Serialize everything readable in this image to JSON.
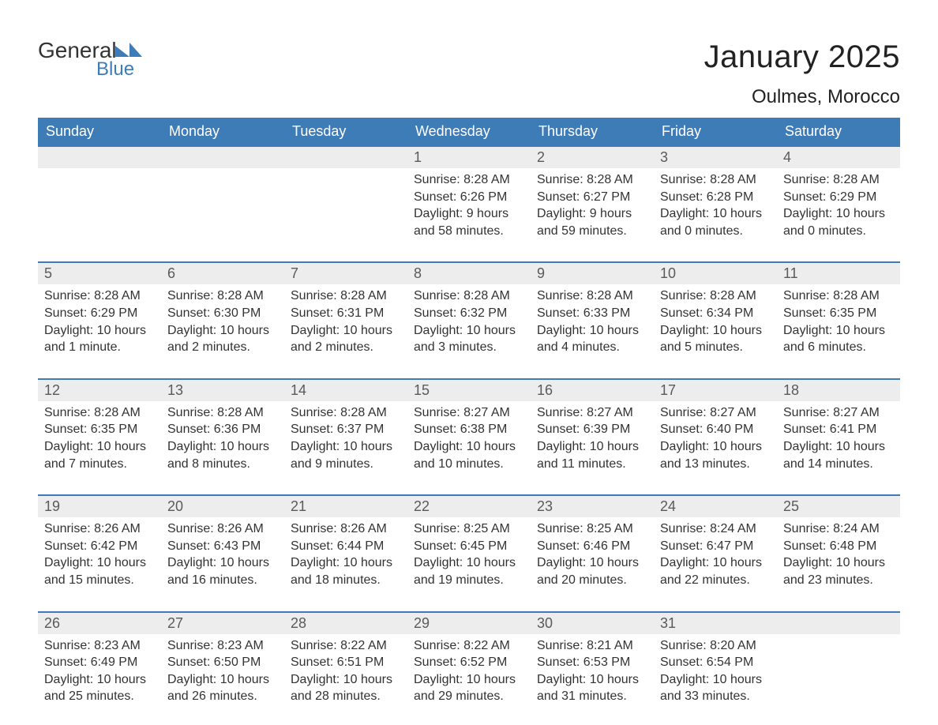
{
  "logo": {
    "general": "General",
    "blue": "Blue",
    "icon_color": "#3e7cb8"
  },
  "title": "January 2025",
  "location": "Oulmes, Morocco",
  "colors": {
    "header_bg": "#3e7cb8",
    "header_text": "#ffffff",
    "daynum_bg": "#ededed",
    "daynum_text": "#5a5a5a",
    "body_text": "#333333",
    "page_bg": "#ffffff",
    "week_border": "#3e7cb8"
  },
  "typography": {
    "title_fontsize": 40,
    "location_fontsize": 24,
    "weekday_fontsize": 18,
    "daynum_fontsize": 18,
    "detail_fontsize": 16,
    "font_family": "Arial"
  },
  "weekdays": [
    "Sunday",
    "Monday",
    "Tuesday",
    "Wednesday",
    "Thursday",
    "Friday",
    "Saturday"
  ],
  "labels": {
    "sunrise": "Sunrise:",
    "sunset": "Sunset:",
    "daylight": "Daylight:"
  },
  "weeks": [
    [
      {
        "day": "",
        "sunrise": "",
        "sunset": "",
        "daylight": ""
      },
      {
        "day": "",
        "sunrise": "",
        "sunset": "",
        "daylight": ""
      },
      {
        "day": "",
        "sunrise": "",
        "sunset": "",
        "daylight": ""
      },
      {
        "day": "1",
        "sunrise": "8:28 AM",
        "sunset": "6:26 PM",
        "daylight": "9 hours and 58 minutes."
      },
      {
        "day": "2",
        "sunrise": "8:28 AM",
        "sunset": "6:27 PM",
        "daylight": "9 hours and 59 minutes."
      },
      {
        "day": "3",
        "sunrise": "8:28 AM",
        "sunset": "6:28 PM",
        "daylight": "10 hours and 0 minutes."
      },
      {
        "day": "4",
        "sunrise": "8:28 AM",
        "sunset": "6:29 PM",
        "daylight": "10 hours and 0 minutes."
      }
    ],
    [
      {
        "day": "5",
        "sunrise": "8:28 AM",
        "sunset": "6:29 PM",
        "daylight": "10 hours and 1 minute."
      },
      {
        "day": "6",
        "sunrise": "8:28 AM",
        "sunset": "6:30 PM",
        "daylight": "10 hours and 2 minutes."
      },
      {
        "day": "7",
        "sunrise": "8:28 AM",
        "sunset": "6:31 PM",
        "daylight": "10 hours and 2 minutes."
      },
      {
        "day": "8",
        "sunrise": "8:28 AM",
        "sunset": "6:32 PM",
        "daylight": "10 hours and 3 minutes."
      },
      {
        "day": "9",
        "sunrise": "8:28 AM",
        "sunset": "6:33 PM",
        "daylight": "10 hours and 4 minutes."
      },
      {
        "day": "10",
        "sunrise": "8:28 AM",
        "sunset": "6:34 PM",
        "daylight": "10 hours and 5 minutes."
      },
      {
        "day": "11",
        "sunrise": "8:28 AM",
        "sunset": "6:35 PM",
        "daylight": "10 hours and 6 minutes."
      }
    ],
    [
      {
        "day": "12",
        "sunrise": "8:28 AM",
        "sunset": "6:35 PM",
        "daylight": "10 hours and 7 minutes."
      },
      {
        "day": "13",
        "sunrise": "8:28 AM",
        "sunset": "6:36 PM",
        "daylight": "10 hours and 8 minutes."
      },
      {
        "day": "14",
        "sunrise": "8:28 AM",
        "sunset": "6:37 PM",
        "daylight": "10 hours and 9 minutes."
      },
      {
        "day": "15",
        "sunrise": "8:27 AM",
        "sunset": "6:38 PM",
        "daylight": "10 hours and 10 minutes."
      },
      {
        "day": "16",
        "sunrise": "8:27 AM",
        "sunset": "6:39 PM",
        "daylight": "10 hours and 11 minutes."
      },
      {
        "day": "17",
        "sunrise": "8:27 AM",
        "sunset": "6:40 PM",
        "daylight": "10 hours and 13 minutes."
      },
      {
        "day": "18",
        "sunrise": "8:27 AM",
        "sunset": "6:41 PM",
        "daylight": "10 hours and 14 minutes."
      }
    ],
    [
      {
        "day": "19",
        "sunrise": "8:26 AM",
        "sunset": "6:42 PM",
        "daylight": "10 hours and 15 minutes."
      },
      {
        "day": "20",
        "sunrise": "8:26 AM",
        "sunset": "6:43 PM",
        "daylight": "10 hours and 16 minutes."
      },
      {
        "day": "21",
        "sunrise": "8:26 AM",
        "sunset": "6:44 PM",
        "daylight": "10 hours and 18 minutes."
      },
      {
        "day": "22",
        "sunrise": "8:25 AM",
        "sunset": "6:45 PM",
        "daylight": "10 hours and 19 minutes."
      },
      {
        "day": "23",
        "sunrise": "8:25 AM",
        "sunset": "6:46 PM",
        "daylight": "10 hours and 20 minutes."
      },
      {
        "day": "24",
        "sunrise": "8:24 AM",
        "sunset": "6:47 PM",
        "daylight": "10 hours and 22 minutes."
      },
      {
        "day": "25",
        "sunrise": "8:24 AM",
        "sunset": "6:48 PM",
        "daylight": "10 hours and 23 minutes."
      }
    ],
    [
      {
        "day": "26",
        "sunrise": "8:23 AM",
        "sunset": "6:49 PM",
        "daylight": "10 hours and 25 minutes."
      },
      {
        "day": "27",
        "sunrise": "8:23 AM",
        "sunset": "6:50 PM",
        "daylight": "10 hours and 26 minutes."
      },
      {
        "day": "28",
        "sunrise": "8:22 AM",
        "sunset": "6:51 PM",
        "daylight": "10 hours and 28 minutes."
      },
      {
        "day": "29",
        "sunrise": "8:22 AM",
        "sunset": "6:52 PM",
        "daylight": "10 hours and 29 minutes."
      },
      {
        "day": "30",
        "sunrise": "8:21 AM",
        "sunset": "6:53 PM",
        "daylight": "10 hours and 31 minutes."
      },
      {
        "day": "31",
        "sunrise": "8:20 AM",
        "sunset": "6:54 PM",
        "daylight": "10 hours and 33 minutes."
      },
      {
        "day": "",
        "sunrise": "",
        "sunset": "",
        "daylight": ""
      }
    ]
  ]
}
